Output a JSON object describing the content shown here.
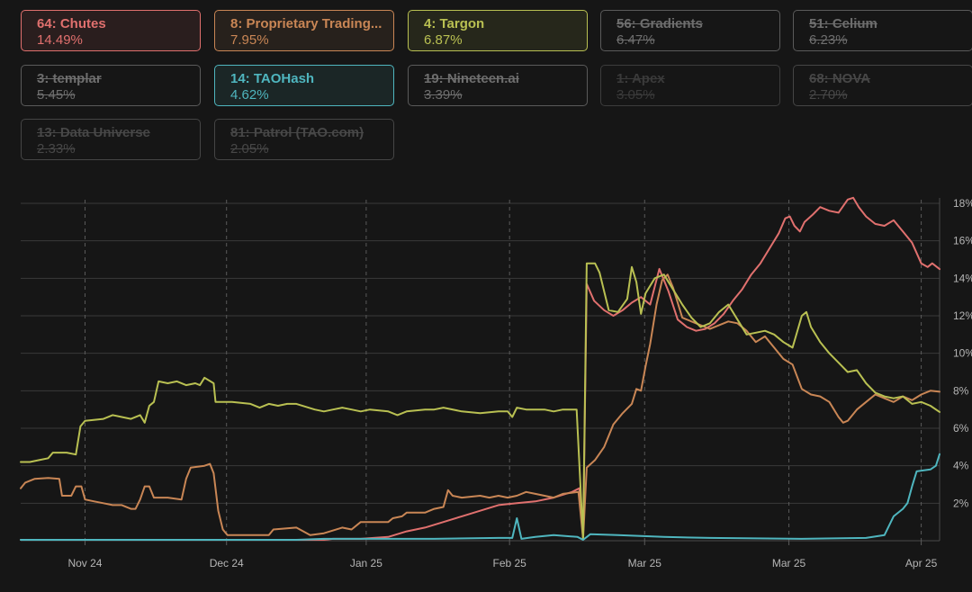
{
  "legend": [
    {
      "label": "64: Chutes",
      "value": "14.49%",
      "color": "#e0706e",
      "active": true
    },
    {
      "label": "8: Proprietary Trading...",
      "value": "7.95%",
      "color": "#c98655",
      "active": true
    },
    {
      "label": "4: Targon",
      "value": "6.87%",
      "color": "#b9c052",
      "active": true
    },
    {
      "label": "56: Gradients",
      "value": "6.47%",
      "active": false
    },
    {
      "label": "51: Celium",
      "value": "6.23%",
      "active": false
    },
    {
      "label": "3: templar",
      "value": "5.45%",
      "active": false
    },
    {
      "label": "14: TAOHash",
      "value": "4.62%",
      "color": "#4fb6bf",
      "active": true
    },
    {
      "label": "19: Nineteen.ai",
      "value": "3.39%",
      "active": false
    },
    {
      "label": "1: Apex",
      "value": "3.05%",
      "active": false
    },
    {
      "label": "68: NOVA",
      "value": "2.70%",
      "active": false
    },
    {
      "label": "13: Data Universe",
      "value": "2.33%",
      "active": false
    },
    {
      "label": "81: Patrol (TAO.com)",
      "value": "2.05%",
      "active": false
    }
  ],
  "chart_data": {
    "type": "line",
    "x_ticks": [
      "Nov 24",
      "Dec 24",
      "Jan 25",
      "Feb 25",
      "Mar 25",
      "Mar 25",
      "Apr 25"
    ],
    "y_ticks": [
      "2%",
      "4%",
      "6%",
      "8%",
      "10%",
      "12%",
      "14%",
      "16%",
      "18%"
    ],
    "ylim": [
      0,
      18.5
    ],
    "x_range": [
      0,
      100
    ],
    "grid": true,
    "series": [
      {
        "name": "64: Chutes",
        "color": "#e0706e",
        "points": [
          [
            0,
            0.05
          ],
          [
            33,
            0.05
          ],
          [
            34,
            0.1
          ],
          [
            37,
            0.1
          ],
          [
            40,
            0.2
          ],
          [
            42,
            0.5
          ],
          [
            44,
            0.7
          ],
          [
            46,
            1.0
          ],
          [
            48,
            1.3
          ],
          [
            50,
            1.6
          ],
          [
            52,
            1.9
          ],
          [
            54,
            2.0
          ],
          [
            56,
            2.1
          ],
          [
            58,
            2.3
          ],
          [
            60,
            2.6
          ],
          [
            60.8,
            2.8
          ],
          [
            61.2,
            0.1
          ],
          [
            61.6,
            13.7
          ],
          [
            62.4,
            12.8
          ],
          [
            63.5,
            12.3
          ],
          [
            64.5,
            12.0
          ],
          [
            65.5,
            12.3
          ],
          [
            66.5,
            12.7
          ],
          [
            67.5,
            13.0
          ],
          [
            68.5,
            12.6
          ],
          [
            69.5,
            14.5
          ],
          [
            70.5,
            13.3
          ],
          [
            71.5,
            11.8
          ],
          [
            72.5,
            11.4
          ],
          [
            73.5,
            11.2
          ],
          [
            74.5,
            11.3
          ],
          [
            75.5,
            11.6
          ],
          [
            76.5,
            12.1
          ],
          [
            77.5,
            12.8
          ],
          [
            78.5,
            13.4
          ],
          [
            79.5,
            14.2
          ],
          [
            80.5,
            14.8
          ],
          [
            81.5,
            15.6
          ],
          [
            82.5,
            16.4
          ],
          [
            83.2,
            17.2
          ],
          [
            83.7,
            17.3
          ],
          [
            84.2,
            16.8
          ],
          [
            84.8,
            16.5
          ],
          [
            85.3,
            17.0
          ],
          [
            86.2,
            17.4
          ],
          [
            87,
            17.8
          ],
          [
            88,
            17.6
          ],
          [
            89,
            17.5
          ],
          [
            90,
            18.2
          ],
          [
            90.6,
            18.3
          ],
          [
            91.2,
            17.8
          ],
          [
            92,
            17.3
          ],
          [
            93,
            16.9
          ],
          [
            94,
            16.8
          ],
          [
            95,
            17.1
          ],
          [
            96,
            16.5
          ],
          [
            97,
            15.9
          ],
          [
            98,
            14.8
          ],
          [
            98.7,
            14.6
          ],
          [
            99.2,
            14.8
          ],
          [
            100,
            14.49
          ]
        ]
      },
      {
        "name": "8: Proprietary Trading...",
        "color": "#c98655",
        "points": [
          [
            0,
            2.8
          ],
          [
            0.5,
            3.1
          ],
          [
            1.5,
            3.3
          ],
          [
            3,
            3.35
          ],
          [
            4.2,
            3.3
          ],
          [
            4.5,
            2.4
          ],
          [
            5.5,
            2.4
          ],
          [
            6,
            2.9
          ],
          [
            6.6,
            2.9
          ],
          [
            7,
            2.2
          ],
          [
            8,
            2.1
          ],
          [
            9,
            2.0
          ],
          [
            10,
            1.9
          ],
          [
            11,
            1.9
          ],
          [
            12,
            1.7
          ],
          [
            12.5,
            1.7
          ],
          [
            13,
            2.2
          ],
          [
            13.5,
            2.9
          ],
          [
            14,
            2.9
          ],
          [
            14.5,
            2.3
          ],
          [
            16,
            2.3
          ],
          [
            17.5,
            2.2
          ],
          [
            18,
            3.3
          ],
          [
            18.5,
            3.9
          ],
          [
            20,
            4.0
          ],
          [
            20.6,
            4.1
          ],
          [
            21,
            3.6
          ],
          [
            21.5,
            1.6
          ],
          [
            22,
            0.6
          ],
          [
            22.5,
            0.3
          ],
          [
            25,
            0.3
          ],
          [
            27,
            0.3
          ],
          [
            27.5,
            0.6
          ],
          [
            30,
            0.7
          ],
          [
            31.5,
            0.3
          ],
          [
            33,
            0.4
          ],
          [
            35,
            0.7
          ],
          [
            36,
            0.6
          ],
          [
            37,
            1.0
          ],
          [
            40,
            1.0
          ],
          [
            40.5,
            1.2
          ],
          [
            41.5,
            1.3
          ],
          [
            42,
            1.5
          ],
          [
            44,
            1.5
          ],
          [
            45,
            1.7
          ],
          [
            46,
            1.8
          ],
          [
            46.5,
            2.7
          ],
          [
            47,
            2.4
          ],
          [
            48,
            2.3
          ],
          [
            50,
            2.4
          ],
          [
            51,
            2.3
          ],
          [
            52,
            2.4
          ],
          [
            53,
            2.3
          ],
          [
            54,
            2.4
          ],
          [
            55,
            2.6
          ],
          [
            56,
            2.5
          ],
          [
            58,
            2.3
          ],
          [
            59,
            2.5
          ],
          [
            60.7,
            2.6
          ],
          [
            61.2,
            0.1
          ],
          [
            61.6,
            3.9
          ],
          [
            62.5,
            4.3
          ],
          [
            63.5,
            5.0
          ],
          [
            64.5,
            6.2
          ],
          [
            65.5,
            6.8
          ],
          [
            66.5,
            7.3
          ],
          [
            67,
            8.1
          ],
          [
            67.5,
            8.0
          ],
          [
            68,
            9.3
          ],
          [
            68.5,
            10.5
          ],
          [
            69.2,
            12.6
          ],
          [
            69.8,
            13.9
          ],
          [
            70.4,
            14.2
          ],
          [
            71,
            13.5
          ],
          [
            72,
            11.9
          ],
          [
            73,
            11.7
          ],
          [
            74,
            11.5
          ],
          [
            75,
            11.3
          ],
          [
            76,
            11.5
          ],
          [
            77,
            11.7
          ],
          [
            78,
            11.6
          ],
          [
            79,
            11.2
          ],
          [
            80,
            10.6
          ],
          [
            81,
            10.9
          ],
          [
            82,
            10.3
          ],
          [
            83,
            9.7
          ],
          [
            84,
            9.4
          ],
          [
            85,
            8.1
          ],
          [
            86,
            7.8
          ],
          [
            87,
            7.7
          ],
          [
            88,
            7.4
          ],
          [
            89,
            6.6
          ],
          [
            89.5,
            6.3
          ],
          [
            90,
            6.4
          ],
          [
            91,
            7.0
          ],
          [
            92,
            7.4
          ],
          [
            93,
            7.8
          ],
          [
            94,
            7.6
          ],
          [
            95,
            7.4
          ],
          [
            96,
            7.7
          ],
          [
            97,
            7.5
          ],
          [
            98,
            7.8
          ],
          [
            99,
            8.0
          ],
          [
            100,
            7.95
          ]
        ]
      },
      {
        "name": "4: Targon",
        "color": "#b9c052",
        "points": [
          [
            0,
            4.2
          ],
          [
            1,
            4.2
          ],
          [
            2,
            4.3
          ],
          [
            3,
            4.4
          ],
          [
            3.5,
            4.7
          ],
          [
            5,
            4.7
          ],
          [
            6,
            4.6
          ],
          [
            6.5,
            6.1
          ],
          [
            7,
            6.4
          ],
          [
            9,
            6.5
          ],
          [
            10,
            6.7
          ],
          [
            11,
            6.6
          ],
          [
            12,
            6.5
          ],
          [
            13,
            6.7
          ],
          [
            13.5,
            6.3
          ],
          [
            14,
            7.2
          ],
          [
            14.5,
            7.4
          ],
          [
            15,
            8.5
          ],
          [
            16,
            8.4
          ],
          [
            17,
            8.5
          ],
          [
            18,
            8.3
          ],
          [
            19,
            8.4
          ],
          [
            19.5,
            8.3
          ],
          [
            20,
            8.7
          ],
          [
            21,
            8.4
          ],
          [
            21.2,
            7.4
          ],
          [
            23,
            7.4
          ],
          [
            25,
            7.3
          ],
          [
            26,
            7.1
          ],
          [
            27,
            7.3
          ],
          [
            28,
            7.2
          ],
          [
            29,
            7.3
          ],
          [
            30,
            7.3
          ],
          [
            32,
            7.0
          ],
          [
            33,
            6.9
          ],
          [
            34,
            7.0
          ],
          [
            35,
            7.1
          ],
          [
            36,
            7.0
          ],
          [
            37,
            6.9
          ],
          [
            38,
            7.0
          ],
          [
            40,
            6.9
          ],
          [
            41,
            6.7
          ],
          [
            42,
            6.9
          ],
          [
            44,
            7.0
          ],
          [
            45,
            7.0
          ],
          [
            46,
            7.1
          ],
          [
            48,
            6.9
          ],
          [
            50,
            6.8
          ],
          [
            52,
            6.9
          ],
          [
            53,
            6.9
          ],
          [
            53.5,
            6.6
          ],
          [
            54,
            7.1
          ],
          [
            55,
            7.0
          ],
          [
            57,
            7.0
          ],
          [
            58,
            6.9
          ],
          [
            59,
            7.0
          ],
          [
            60.5,
            7.0
          ],
          [
            61.2,
            0.1
          ],
          [
            61.6,
            14.8
          ],
          [
            62.5,
            14.8
          ],
          [
            63,
            14.3
          ],
          [
            64,
            12.3
          ],
          [
            65,
            12.2
          ],
          [
            66,
            12.9
          ],
          [
            66.5,
            14.6
          ],
          [
            67,
            13.8
          ],
          [
            67.5,
            12.1
          ],
          [
            68,
            13.2
          ],
          [
            69,
            14.0
          ],
          [
            70,
            14.2
          ],
          [
            71,
            13.4
          ],
          [
            72,
            12.6
          ],
          [
            73,
            11.9
          ],
          [
            74,
            11.4
          ],
          [
            75,
            11.6
          ],
          [
            76,
            12.2
          ],
          [
            77,
            12.6
          ],
          [
            78,
            11.8
          ],
          [
            79,
            11.0
          ],
          [
            80,
            11.1
          ],
          [
            81,
            11.2
          ],
          [
            82,
            11.0
          ],
          [
            83,
            10.6
          ],
          [
            84,
            10.3
          ],
          [
            85,
            12.0
          ],
          [
            85.5,
            12.2
          ],
          [
            86,
            11.4
          ],
          [
            87,
            10.6
          ],
          [
            88,
            10.0
          ],
          [
            89,
            9.5
          ],
          [
            90,
            9.0
          ],
          [
            91,
            9.1
          ],
          [
            92,
            8.4
          ],
          [
            93,
            7.9
          ],
          [
            94,
            7.7
          ],
          [
            95,
            7.6
          ],
          [
            96,
            7.7
          ],
          [
            97,
            7.3
          ],
          [
            98,
            7.4
          ],
          [
            99,
            7.2
          ],
          [
            100,
            6.87
          ]
        ]
      },
      {
        "name": "14: TAOHash",
        "color": "#4fb6bf",
        "points": [
          [
            0,
            0.05
          ],
          [
            30,
            0.05
          ],
          [
            33,
            0.1
          ],
          [
            45,
            0.1
          ],
          [
            52,
            0.15
          ],
          [
            53.5,
            0.15
          ],
          [
            54,
            1.2
          ],
          [
            54.5,
            0.1
          ],
          [
            56,
            0.2
          ],
          [
            58,
            0.3
          ],
          [
            60.6,
            0.2
          ],
          [
            61.2,
            0.05
          ],
          [
            62,
            0.35
          ],
          [
            65,
            0.3
          ],
          [
            70,
            0.2
          ],
          [
            75,
            0.15
          ],
          [
            85,
            0.1
          ],
          [
            92,
            0.15
          ],
          [
            94,
            0.3
          ],
          [
            95,
            1.3
          ],
          [
            96,
            1.7
          ],
          [
            96.5,
            2.0
          ],
          [
            97,
            2.9
          ],
          [
            97.5,
            3.7
          ],
          [
            99,
            3.8
          ],
          [
            99.6,
            4.0
          ],
          [
            100,
            4.62
          ]
        ]
      }
    ]
  }
}
